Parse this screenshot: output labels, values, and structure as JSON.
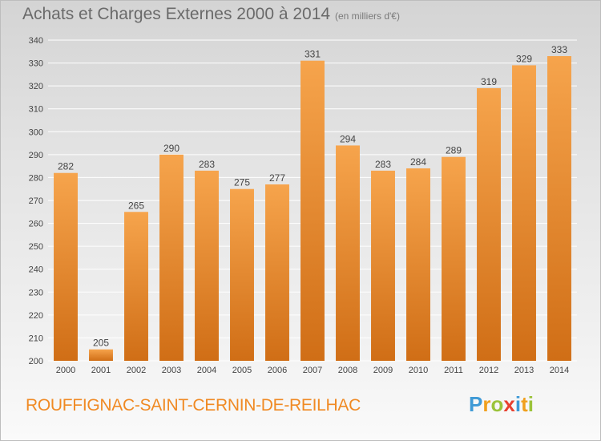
{
  "title": "Achats et Charges Externes 2000 à 2014",
  "subtitle": "(en milliers d'€)",
  "commune": "ROUFFIGNAC-SAINT-CERNIN-DE-REILHAC",
  "logo": {
    "letters": [
      "P",
      "r",
      "o",
      "x",
      "i",
      "t",
      "i"
    ],
    "colors": [
      "#3f9ad6",
      "#f0a01e",
      "#9bc33a",
      "#e8402f",
      "#3f9ad6",
      "#f0a01e",
      "#9bc33a"
    ]
  },
  "colors": {
    "bar_top": "#f6a44c",
    "bar_bottom": "#d06e16",
    "grid": "#ffffff",
    "axis_text": "#444444"
  },
  "chart_data": {
    "type": "bar",
    "categories": [
      "2000",
      "2001",
      "2002",
      "2003",
      "2004",
      "2005",
      "2006",
      "2007",
      "2008",
      "2009",
      "2010",
      "2011",
      "2012",
      "2013",
      "2014"
    ],
    "values": [
      282,
      205,
      265,
      290,
      283,
      275,
      277,
      331,
      294,
      283,
      284,
      289,
      319,
      329,
      333
    ],
    "ylim": [
      200,
      340
    ],
    "yticks": [
      200,
      210,
      220,
      230,
      240,
      250,
      260,
      270,
      280,
      290,
      300,
      310,
      320,
      330,
      340
    ],
    "grid": true
  }
}
